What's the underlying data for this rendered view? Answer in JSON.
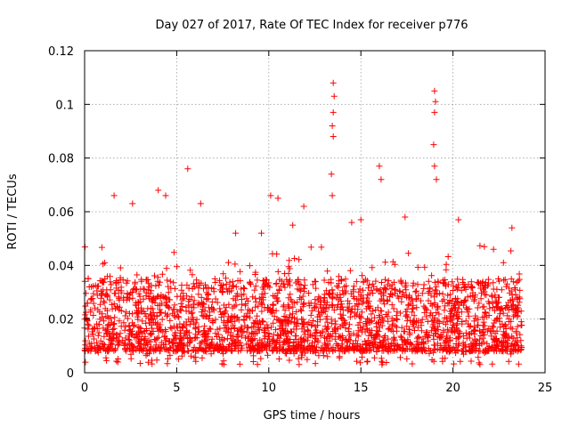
{
  "chart_data": {
    "type": "scatter",
    "title": "Day 027 of 2017, Rate Of TEC Index for receiver p776",
    "xlabel": "GPS time / hours",
    "ylabel": "ROTI / TECUs",
    "xlim": [
      0,
      25
    ],
    "ylim": [
      0,
      0.12
    ],
    "xticks": [
      0,
      5,
      10,
      15,
      20,
      25
    ],
    "yticks": [
      0,
      0.02,
      0.04,
      0.06,
      0.08,
      0.1,
      0.12
    ],
    "xtick_labels": [
      "0",
      "5",
      "10",
      "15",
      "20",
      "25"
    ],
    "ytick_labels": [
      "0",
      "0.02",
      "0.04",
      "0.06",
      "0.08",
      "0.1",
      "0.12"
    ],
    "grid": true,
    "marker": "+",
    "series": [
      {
        "name": "ROTI",
        "color": "#ff0000",
        "x_range": [
          0,
          23.75
        ],
        "typical_band": [
          0.008,
          0.035
        ],
        "note": "Dense cloud of points; representative peaks listed below",
        "peaks": [
          {
            "x": 0.2,
            "y": 0.035
          },
          {
            "x": 1.6,
            "y": 0.066
          },
          {
            "x": 2.6,
            "y": 0.063
          },
          {
            "x": 4.0,
            "y": 0.068
          },
          {
            "x": 4.4,
            "y": 0.066
          },
          {
            "x": 5.6,
            "y": 0.076
          },
          {
            "x": 6.3,
            "y": 0.063
          },
          {
            "x": 8.2,
            "y": 0.052
          },
          {
            "x": 9.6,
            "y": 0.052
          },
          {
            "x": 10.1,
            "y": 0.066
          },
          {
            "x": 10.5,
            "y": 0.065
          },
          {
            "x": 11.3,
            "y": 0.055
          },
          {
            "x": 11.9,
            "y": 0.062
          },
          {
            "x": 13.5,
            "y": 0.108
          },
          {
            "x": 13.55,
            "y": 0.103
          },
          {
            "x": 13.5,
            "y": 0.097
          },
          {
            "x": 13.45,
            "y": 0.092
          },
          {
            "x": 13.5,
            "y": 0.088
          },
          {
            "x": 13.4,
            "y": 0.074
          },
          {
            "x": 13.45,
            "y": 0.066
          },
          {
            "x": 14.5,
            "y": 0.056
          },
          {
            "x": 15.0,
            "y": 0.057
          },
          {
            "x": 16.0,
            "y": 0.077
          },
          {
            "x": 16.1,
            "y": 0.072
          },
          {
            "x": 17.4,
            "y": 0.058
          },
          {
            "x": 19.0,
            "y": 0.105
          },
          {
            "x": 19.05,
            "y": 0.101
          },
          {
            "x": 19.0,
            "y": 0.097
          },
          {
            "x": 18.95,
            "y": 0.085
          },
          {
            "x": 19.0,
            "y": 0.077
          },
          {
            "x": 19.1,
            "y": 0.072
          },
          {
            "x": 20.3,
            "y": 0.057
          },
          {
            "x": 21.7,
            "y": 0.047
          },
          {
            "x": 22.2,
            "y": 0.046
          },
          {
            "x": 23.2,
            "y": 0.054
          }
        ]
      }
    ]
  }
}
